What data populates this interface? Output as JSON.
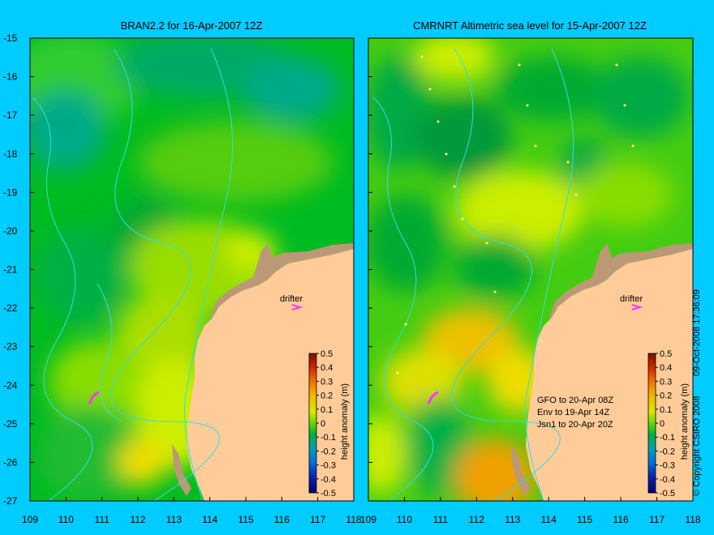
{
  "panels": [
    {
      "title": "BRAN2.2 for 16-Apr-2007 12Z",
      "drifter_label": "drifter",
      "notes": []
    },
    {
      "title": "CMRNRT Altimetric sea level  for 15-Apr-2007 12Z",
      "drifter_label": "drifter",
      "notes": [
        "GFO to 20-Apr 08Z",
        "Env to 19-Apr 14Z",
        "Jsn1 to 20-Apr 20Z"
      ]
    }
  ],
  "axes": {
    "x_ticks_left": [
      "109",
      "110",
      "111",
      "112",
      "113",
      "114",
      "115",
      "116",
      "117",
      "118"
    ],
    "x_ticks_right": [
      "109",
      "110",
      "111",
      "112",
      "113",
      "114",
      "115",
      "116",
      "117",
      "118"
    ],
    "y_ticks": [
      "-15",
      "-16",
      "-17",
      "-18",
      "-19",
      "-20",
      "-21",
      "-22",
      "-23",
      "-24",
      "-25",
      "-26",
      "-27"
    ]
  },
  "colorbar": {
    "label": "height anomaly (m)",
    "ticks": [
      "0.5",
      "0.4",
      "0.3",
      "0.2",
      "0.1",
      "0",
      "-0.1",
      "-0.2",
      "-0.3",
      "-0.4",
      "-0.5"
    ],
    "colors": [
      "#8b1a00",
      "#d03000",
      "#f07000",
      "#f0b000",
      "#e0e000",
      "#a0e000",
      "#00c000",
      "#00a090",
      "#0080e0",
      "#0030c0",
      "#000080"
    ]
  },
  "side_text": {
    "copyright": "© Copyright CSIRO 2008",
    "timestamp": "09-Oct-2008 17:36:09"
  },
  "colors": {
    "background": "#00ccff",
    "land": "#ffcc99",
    "sea_green": "#00cc00",
    "sea_dark": "#00aa22",
    "sea_yellow": "#ccee00",
    "coast_shadow": "#bb9977",
    "contour": "#33dddd",
    "drifter": "#ff33ff"
  }
}
